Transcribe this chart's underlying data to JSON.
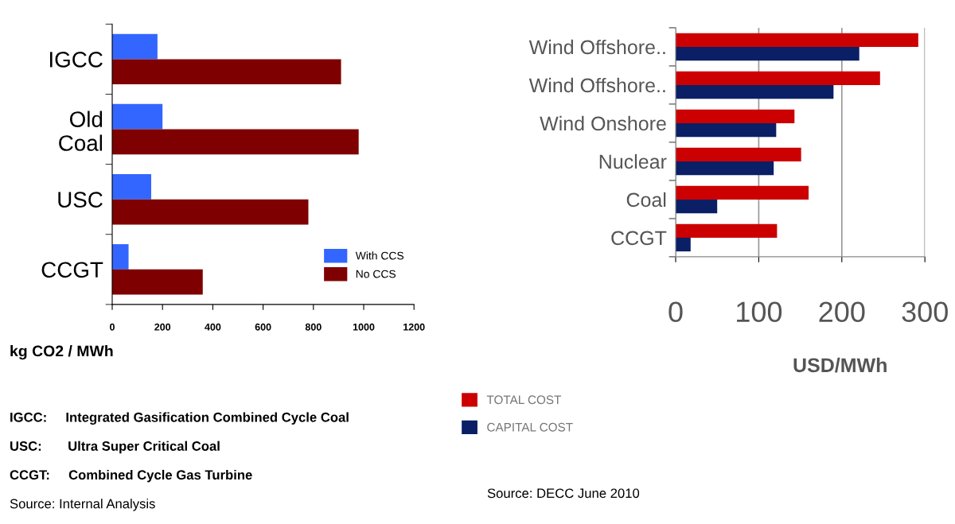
{
  "chart_data": [
    {
      "type": "bar",
      "orientation": "horizontal",
      "categories": [
        "IGCC",
        "Old\nCoal",
        "USC",
        "CCGT"
      ],
      "xlabel": "kg CO2 / MWh",
      "series": [
        {
          "name": "With CCS",
          "color": "#3366ff",
          "values": [
            180,
            200,
            155,
            65
          ]
        },
        {
          "name": "No CCS",
          "color": "#7f0000",
          "values": [
            910,
            980,
            780,
            360
          ]
        }
      ],
      "xlim": [
        0,
        1200
      ],
      "xticks": [
        0,
        200,
        400,
        600,
        800,
        1000,
        1200
      ],
      "grid": false,
      "legend": "bottom right",
      "annotations": [
        "IGCC:     Integrated Gasification Combined Cycle Coal",
        "USC:       Ultra Super Critical Coal",
        "CCGT:     Combined Cycle Gas Turbine",
        "Source: Internal Analysis"
      ]
    },
    {
      "type": "bar",
      "orientation": "horizontal",
      "categories": [
        "Wind Offshore..",
        "Wind Offshore..",
        "Wind Onshore",
        "Nuclear",
        "Coal",
        "CCGT"
      ],
      "xlabel": "USD/MWh",
      "series": [
        {
          "name": "TOTAL COST",
          "color": "#cc0000",
          "values": [
            292,
            246,
            143,
            151,
            160,
            122
          ]
        },
        {
          "name": "CAPITAL COST",
          "color": "#0a1f66",
          "values": [
            221,
            190,
            121,
            118,
            50,
            18
          ]
        }
      ],
      "xlim": [
        0,
        300
      ],
      "xticks": [
        0,
        100,
        200,
        300
      ],
      "grid": "x",
      "legend": "bottom",
      "annotations": [
        "Source: DECC June 2010"
      ]
    }
  ]
}
